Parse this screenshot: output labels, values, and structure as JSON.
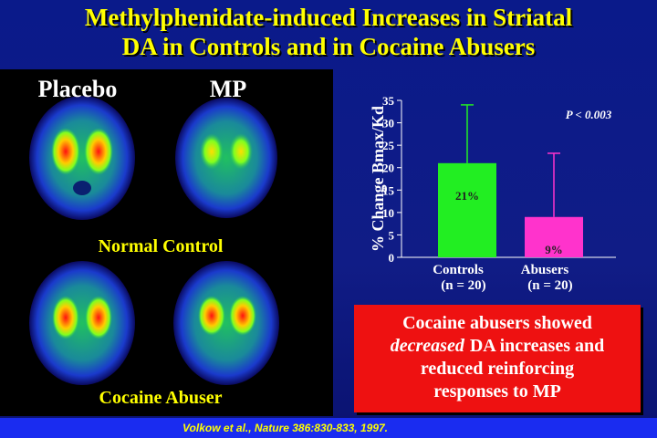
{
  "title": [
    "Methylphenidate-induced Increases in Striatal",
    "DA in Controls and in Cocaine Abusers"
  ],
  "panel": {
    "columns": [
      "Placebo",
      "MP"
    ],
    "rows": [
      "Normal Control",
      "Cocaine Abuser"
    ]
  },
  "chart_data": {
    "type": "bar",
    "ylabel": "% Change Bmax/Kd",
    "categories": [
      "Controls",
      "Abusers"
    ],
    "category_notes": [
      "(n = 20)",
      "(n = 20)"
    ],
    "values": [
      21,
      9
    ],
    "value_labels": [
      "21%",
      "9%"
    ],
    "errors": [
      13,
      14.2
    ],
    "colors": [
      "#22ee22",
      "#ff33cc"
    ],
    "ylim": [
      0,
      35
    ],
    "yticks": [
      0,
      5,
      10,
      15,
      20,
      25,
      30,
      35
    ],
    "annotation": "P < 0.003"
  },
  "callout": {
    "line1": "Cocaine abusers showed",
    "emphasis": "decreased",
    "line2_rest": "DA increases and",
    "line3": "reduced reinforcing",
    "line4": "responses to MP"
  },
  "citation": "Volkow et al., Nature 386:830-833, 1997."
}
